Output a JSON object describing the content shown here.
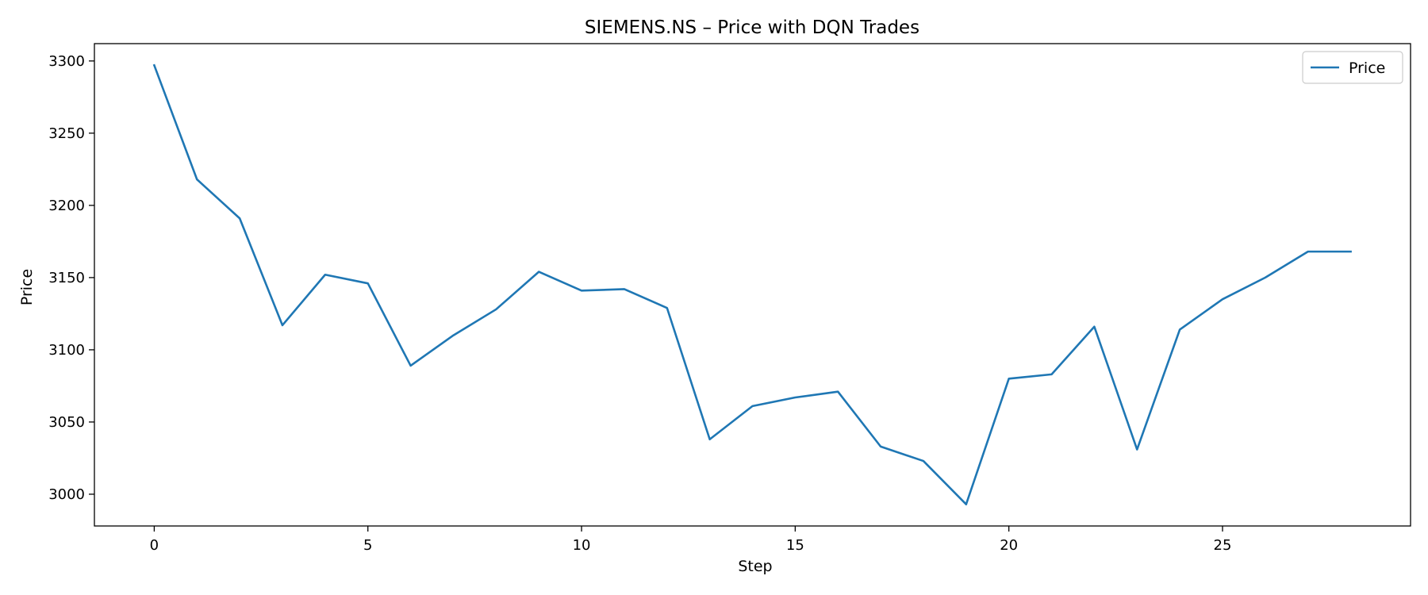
{
  "chart_data": {
    "type": "line",
    "title": "SIEMENS.NS – Price with DQN Trades",
    "xlabel": "Step",
    "ylabel": "Price",
    "xlim": [
      -1.4,
      29.4
    ],
    "ylim": [
      2978,
      3312
    ],
    "xticks": [
      0,
      5,
      10,
      15,
      20,
      25
    ],
    "yticks": [
      3000,
      3050,
      3100,
      3150,
      3200,
      3250,
      3300
    ],
    "grid": false,
    "legend_position": "top-right",
    "series": [
      {
        "name": "Price",
        "color": "#1f77b4",
        "x": [
          0,
          1,
          2,
          3,
          4,
          5,
          6,
          7,
          8,
          9,
          10,
          11,
          12,
          13,
          14,
          15,
          16,
          17,
          18,
          19,
          20,
          21,
          22,
          23,
          24,
          25,
          26,
          27,
          28
        ],
        "y": [
          3297,
          3218,
          3191,
          3117,
          3152,
          3146,
          3089,
          3110,
          3128,
          3154,
          3141,
          3142,
          3129,
          3038,
          3061,
          3067,
          3071,
          3033,
          3023,
          2993,
          3080,
          3083,
          3116,
          3031,
          3114,
          3135,
          3150,
          3168,
          3168
        ]
      }
    ]
  }
}
